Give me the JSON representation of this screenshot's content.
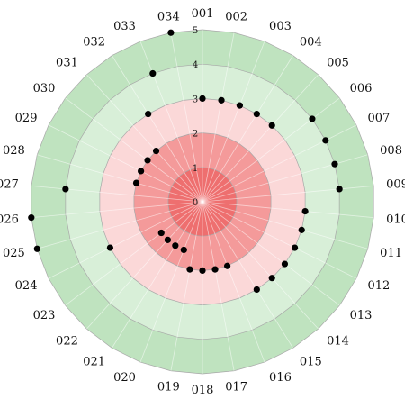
{
  "chart_data": {
    "type": "radar-scatter",
    "categories": [
      "001",
      "002",
      "003",
      "004",
      "005",
      "006",
      "007",
      "008",
      "009",
      "010",
      "011",
      "012",
      "013",
      "014",
      "015",
      "016",
      "017",
      "018",
      "019",
      "020",
      "021",
      "022",
      "023",
      "024",
      "025",
      "026",
      "027",
      "028",
      "029",
      "030",
      "031",
      "032",
      "033",
      "034"
    ],
    "values": [
      3,
      3,
      3,
      3,
      3,
      4,
      4,
      4,
      4,
      3,
      3,
      3,
      3,
      3,
      3,
      2,
      2,
      2,
      2,
      1.5,
      1.5,
      1.5,
      1.5,
      3,
      5,
      5,
      4,
      2,
      2,
      2,
      2,
      3,
      4,
      5
    ],
    "radial_ticks": [
      "0",
      "1",
      "2",
      "3",
      "4",
      "5"
    ],
    "rlim": [
      0,
      5
    ],
    "band_colors": [
      "#ee6f6f",
      "#f49a9a",
      "#fbd8d8",
      "#d8efd8",
      "#bfe3bf"
    ],
    "marker_color": "#000000"
  }
}
